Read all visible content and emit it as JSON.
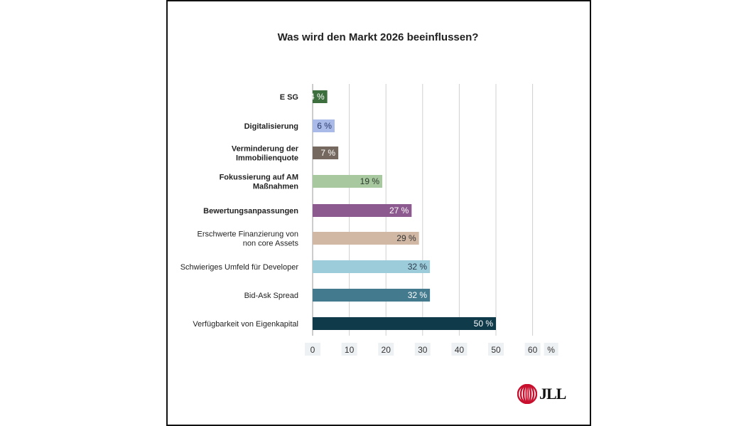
{
  "chart_data": {
    "type": "bar",
    "orientation": "horizontal",
    "title": "Was wird den Markt 2026 beeinflussen?",
    "categories": [
      [
        "E SG"
      ],
      [
        "Digitalisierung"
      ],
      [
        "Verminderung der",
        "Immobilienquote"
      ],
      [
        "Fokussierung auf AM",
        "Maßnahmen"
      ],
      [
        "Bewertungsanpassungen"
      ],
      [
        "Erschwerte Finanzierung von",
        "non core Assets"
      ],
      [
        "Schwieriges Umfeld für Developer"
      ],
      [
        "Bid-Ask Spread"
      ],
      [
        "Verfügbarkeit von Eigenkapital"
      ]
    ],
    "values": [
      4,
      6,
      7,
      19,
      27,
      29,
      32,
      32,
      50
    ],
    "data_labels": [
      "4 %",
      "6 %",
      "7 %",
      "19 %",
      "27 %",
      "29 %",
      "32 %",
      "32 %",
      "50 %"
    ],
    "colors": [
      "#3d6e3d",
      "#a9b9e8",
      "#75695f",
      "#a8c9a0",
      "#8d5a8f",
      "#d1b8a4",
      "#9ccbd9",
      "#447a8e",
      "#0e3a4a"
    ],
    "label_colors": [
      "#ffffff",
      "#2a3a6a",
      "#ffffff",
      "#2a3a2a",
      "#ffffff",
      "#333333",
      "#2a3a4a",
      "#ffffff",
      "#ffffff"
    ],
    "xticks": [
      "0",
      "10",
      "20",
      "30",
      "40",
      "50",
      "60"
    ],
    "xunit": "%",
    "xlim": [
      0,
      60
    ],
    "grid": true,
    "legend": "none"
  },
  "logo": {
    "text": "JLL",
    "color": "#c8102e"
  }
}
